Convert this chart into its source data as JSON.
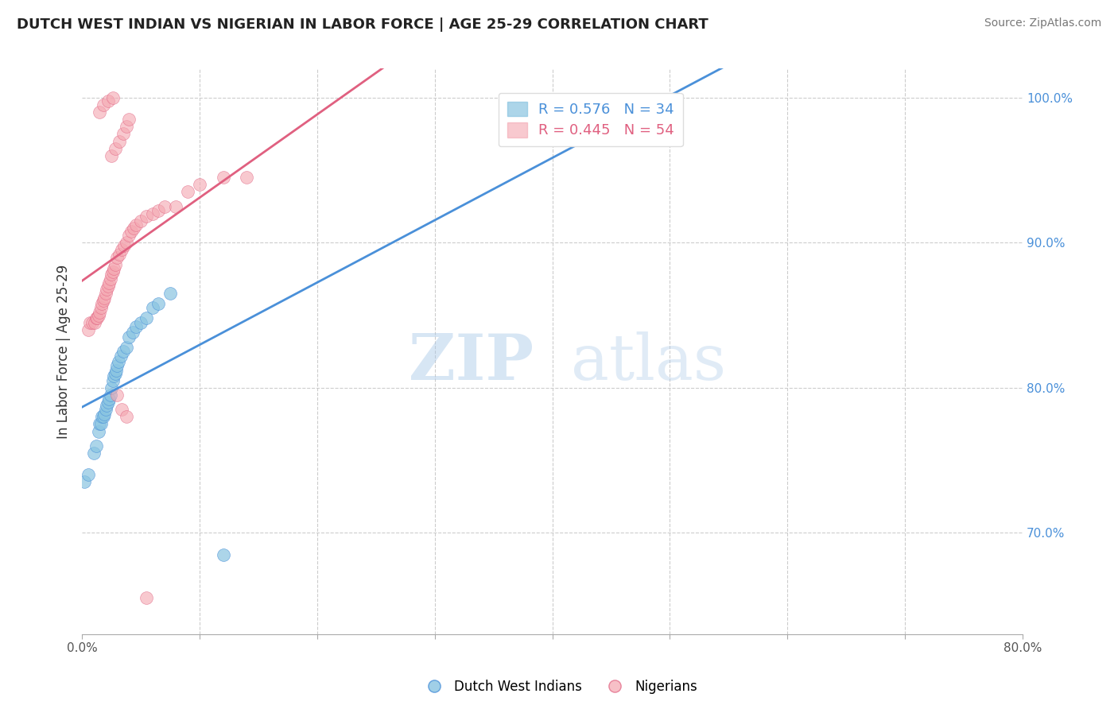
{
  "title": "DUTCH WEST INDIAN VS NIGERIAN IN LABOR FORCE | AGE 25-29 CORRELATION CHART",
  "source": "Source: ZipAtlas.com",
  "xlabel": "",
  "ylabel": "In Labor Force | Age 25-29",
  "xlim": [
    0.0,
    0.8
  ],
  "ylim": [
    0.63,
    1.02
  ],
  "xtick_positions": [
    0.0,
    0.1,
    0.2,
    0.3,
    0.4,
    0.5,
    0.6,
    0.7,
    0.8
  ],
  "xtick_show_labels": [
    true,
    false,
    false,
    false,
    false,
    false,
    false,
    false,
    true
  ],
  "xticklabels_shown": [
    "0.0%",
    "80.0%"
  ],
  "xticklabels_pos": [
    0.0,
    0.8
  ],
  "yticks": [
    0.7,
    0.8,
    0.9,
    1.0
  ],
  "yticklabels": [
    "70.0%",
    "80.0%",
    "90.0%",
    "100.0%"
  ],
  "blue_color": "#89c4e1",
  "pink_color": "#f4a6b0",
  "blue_line_color": "#4a90d9",
  "pink_line_color": "#e06080",
  "legend_blue_text_color": "#4a90d9",
  "legend_pink_text_color": "#e06080",
  "r_blue": 0.576,
  "n_blue": 34,
  "r_pink": 0.445,
  "n_pink": 54,
  "watermark_zip": "ZIP",
  "watermark_atlas": "atlas",
  "blue_x": [
    0.002,
    0.005,
    0.01,
    0.012,
    0.014,
    0.015,
    0.016,
    0.017,
    0.018,
    0.019,
    0.02,
    0.021,
    0.022,
    0.023,
    0.024,
    0.025,
    0.026,
    0.027,
    0.028,
    0.029,
    0.03,
    0.031,
    0.033,
    0.035,
    0.038,
    0.04,
    0.043,
    0.046,
    0.05,
    0.055,
    0.06,
    0.065,
    0.075,
    0.12
  ],
  "blue_y": [
    0.735,
    0.74,
    0.755,
    0.76,
    0.77,
    0.775,
    0.775,
    0.78,
    0.78,
    0.782,
    0.785,
    0.788,
    0.79,
    0.792,
    0.795,
    0.8,
    0.805,
    0.808,
    0.81,
    0.812,
    0.815,
    0.818,
    0.822,
    0.825,
    0.828,
    0.835,
    0.838,
    0.842,
    0.845,
    0.848,
    0.855,
    0.858,
    0.865,
    0.685
  ],
  "pink_x": [
    0.005,
    0.007,
    0.009,
    0.011,
    0.012,
    0.013,
    0.014,
    0.015,
    0.016,
    0.017,
    0.018,
    0.019,
    0.02,
    0.021,
    0.022,
    0.023,
    0.024,
    0.025,
    0.026,
    0.027,
    0.028,
    0.03,
    0.032,
    0.034,
    0.036,
    0.038,
    0.04,
    0.042,
    0.044,
    0.046,
    0.05,
    0.055,
    0.06,
    0.065,
    0.07,
    0.08,
    0.09,
    0.1,
    0.12,
    0.14,
    0.025,
    0.028,
    0.032,
    0.035,
    0.038,
    0.04,
    0.015,
    0.018,
    0.022,
    0.026,
    0.03,
    0.034,
    0.038,
    0.055
  ],
  "pink_y": [
    0.84,
    0.845,
    0.845,
    0.845,
    0.848,
    0.848,
    0.85,
    0.852,
    0.855,
    0.858,
    0.86,
    0.862,
    0.865,
    0.868,
    0.87,
    0.872,
    0.875,
    0.878,
    0.88,
    0.882,
    0.885,
    0.89,
    0.892,
    0.895,
    0.898,
    0.9,
    0.905,
    0.908,
    0.91,
    0.912,
    0.915,
    0.918,
    0.92,
    0.922,
    0.925,
    0.925,
    0.935,
    0.94,
    0.945,
    0.945,
    0.96,
    0.965,
    0.97,
    0.975,
    0.98,
    0.985,
    0.99,
    0.995,
    0.998,
    1.0,
    0.795,
    0.785,
    0.78,
    0.655
  ]
}
